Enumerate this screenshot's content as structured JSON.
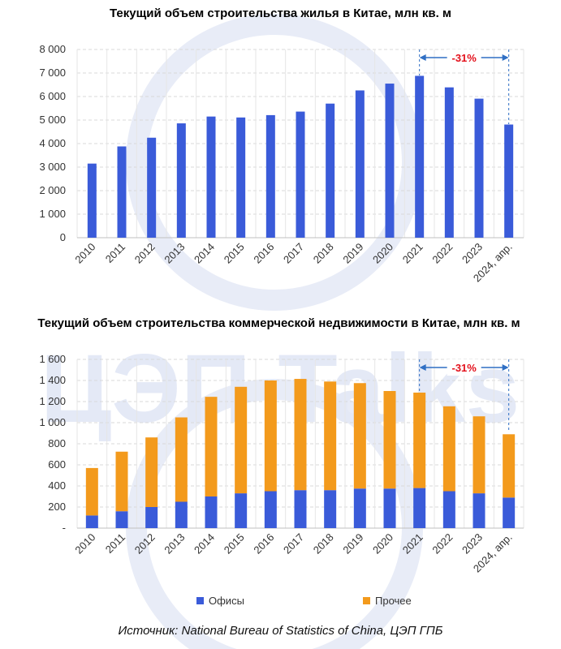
{
  "watermark": "ЦЭП Talks",
  "source": "Источник: National Bureau of Statistics of China, ЦЭП ГПБ",
  "colors": {
    "offices": "#3a5bd9",
    "other": "#f39a1c",
    "residential": "#3a5bd9",
    "annotation": "#e3101b",
    "arrow": "#2f6fc4"
  },
  "chart_data": [
    {
      "type": "bar",
      "title": "Текущий объем строительства жилья в Китае, млн кв. м",
      "categories": [
        "2010",
        "2011",
        "2012",
        "2013",
        "2014",
        "2015",
        "2016",
        "2017",
        "2018",
        "2019",
        "2020",
        "2021",
        "2022",
        "2023",
        "2024, апр."
      ],
      "values": [
        3150,
        3880,
        4250,
        4860,
        5150,
        5110,
        5210,
        5360,
        5700,
        6260,
        6550,
        6880,
        6390,
        5910,
        4810
      ],
      "ylim": [
        0,
        8000
      ],
      "yticks": [
        0,
        1000,
        2000,
        3000,
        4000,
        5000,
        6000,
        7000,
        8000
      ],
      "ytick_labels": [
        "0",
        "1 000",
        "2 000",
        "3 000",
        "4 000",
        "5 000",
        "6 000",
        "7 000",
        "8 000"
      ],
      "grid": true,
      "annotation": {
        "label": "-31%",
        "from": "2021",
        "to": "2024, апр."
      }
    },
    {
      "type": "bar",
      "stacked": true,
      "title": "Текущий объем строительства коммерческой недвижимости в Китае, млн кв. м",
      "categories": [
        "2010",
        "2011",
        "2012",
        "2013",
        "2014",
        "2015",
        "2016",
        "2017",
        "2018",
        "2019",
        "2020",
        "2021",
        "2022",
        "2023",
        "2024, апр."
      ],
      "series": [
        {
          "name": "Офисы",
          "values": [
            120,
            160,
            200,
            250,
            300,
            330,
            350,
            360,
            360,
            375,
            375,
            380,
            350,
            330,
            290
          ]
        },
        {
          "name": "Прочее",
          "values": [
            450,
            565,
            660,
            800,
            945,
            1010,
            1050,
            1055,
            1030,
            1000,
            925,
            905,
            805,
            730,
            600
          ]
        }
      ],
      "ylim": [
        0,
        1600
      ],
      "yticks": [
        0,
        200,
        400,
        600,
        800,
        1000,
        1200,
        1400,
        1600
      ],
      "ytick_labels": [
        "-",
        "200",
        "400",
        "600",
        "800",
        "1 000",
        "1 200",
        "1 400",
        "1 600"
      ],
      "grid": true,
      "legend": "bottom",
      "annotation": {
        "label": "-31%",
        "from": "2021",
        "to": "2024, апр."
      }
    }
  ]
}
